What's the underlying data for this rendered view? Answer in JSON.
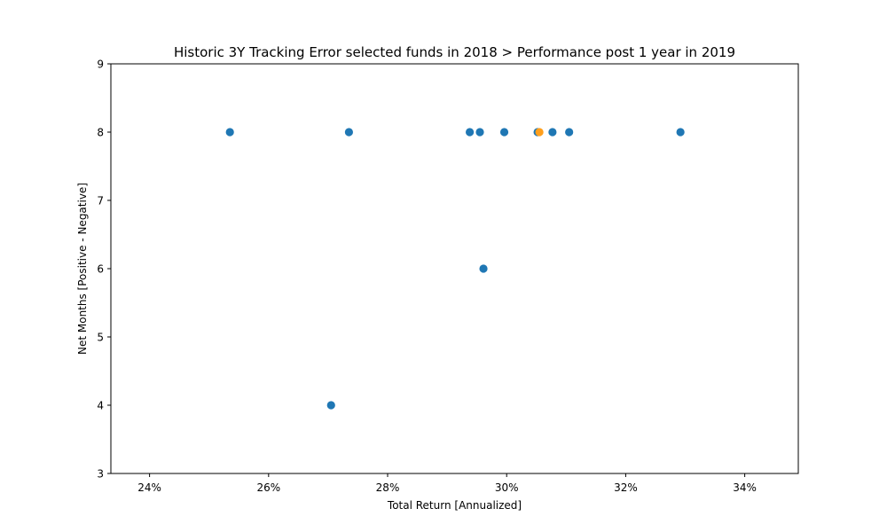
{
  "chart_data": {
    "type": "scatter",
    "title": "Historic 3Y Tracking Error selected funds in 2018 > Performance post 1 year in 2019",
    "xlabel": "Total Return [Annualized]",
    "ylabel": "Net Months [Positive - Negative]",
    "xlim": [
      23.35,
      34.9
    ],
    "ylim": [
      3,
      9
    ],
    "xticks": [
      24,
      26,
      28,
      30,
      32,
      34
    ],
    "xtick_labels": [
      "24%",
      "26%",
      "28%",
      "30%",
      "32%",
      "34%"
    ],
    "yticks": [
      3,
      4,
      5,
      6,
      7,
      8,
      9
    ],
    "ytick_labels": [
      "3",
      "4",
      "5",
      "6",
      "7",
      "8",
      "9"
    ],
    "grid": false,
    "series": [
      {
        "color": "#1f77b4",
        "points": [
          {
            "x": 25.35,
            "y": 8
          },
          {
            "x": 27.05,
            "y": 4
          },
          {
            "x": 27.35,
            "y": 8
          },
          {
            "x": 29.38,
            "y": 8
          },
          {
            "x": 29.55,
            "y": 8
          },
          {
            "x": 29.61,
            "y": 6
          },
          {
            "x": 29.96,
            "y": 8
          },
          {
            "x": 30.52,
            "y": 8
          },
          {
            "x": 30.77,
            "y": 8
          },
          {
            "x": 31.05,
            "y": 8
          },
          {
            "x": 32.92,
            "y": 8
          }
        ]
      },
      {
        "color": "#ff9f1c",
        "points": [
          {
            "x": 30.55,
            "y": 8
          }
        ]
      }
    ]
  }
}
